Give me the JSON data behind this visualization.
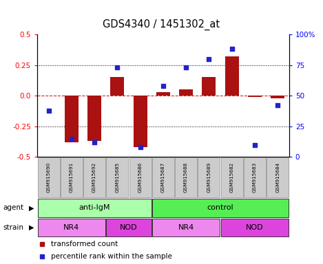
{
  "title": "GDS4340 / 1451302_at",
  "samples": [
    "GSM915690",
    "GSM915691",
    "GSM915692",
    "GSM915685",
    "GSM915686",
    "GSM915687",
    "GSM915688",
    "GSM915689",
    "GSM915682",
    "GSM915683",
    "GSM915684"
  ],
  "bar_values": [
    0.0,
    -0.38,
    -0.37,
    0.15,
    -0.42,
    0.03,
    0.05,
    0.15,
    0.32,
    -0.01,
    -0.02
  ],
  "percentile_values": [
    38,
    15,
    12,
    73,
    8,
    58,
    73,
    80,
    88,
    10,
    42
  ],
  "ylim_left": [
    -0.5,
    0.5
  ],
  "ylim_right": [
    0,
    100
  ],
  "yticks_left": [
    -0.5,
    -0.25,
    0.0,
    0.25,
    0.5
  ],
  "yticks_right": [
    0,
    25,
    50,
    75,
    100
  ],
  "ytick_labels_right": [
    "0",
    "25",
    "50",
    "75",
    "100%"
  ],
  "bar_color": "#AA1111",
  "dot_color": "#2222CC",
  "agent_groups": [
    {
      "label": "anti-IgM",
      "start": 0,
      "end": 5,
      "color": "#AAFFAA"
    },
    {
      "label": "control",
      "start": 5,
      "end": 11,
      "color": "#55EE55"
    }
  ],
  "strain_groups": [
    {
      "label": "NR4",
      "start": 0,
      "end": 3,
      "color": "#EE88EE"
    },
    {
      "label": "NOD",
      "start": 3,
      "end": 5,
      "color": "#DD44DD"
    },
    {
      "label": "NR4",
      "start": 5,
      "end": 8,
      "color": "#EE88EE"
    },
    {
      "label": "NOD",
      "start": 8,
      "end": 11,
      "color": "#DD44DD"
    }
  ],
  "legend_red_label": "transformed count",
  "legend_blue_label": "percentile rank within the sample",
  "zero_line_color": "#CC2222",
  "sample_box_color": "#CCCCCC",
  "left_label_color": "red",
  "right_label_color": "blue"
}
